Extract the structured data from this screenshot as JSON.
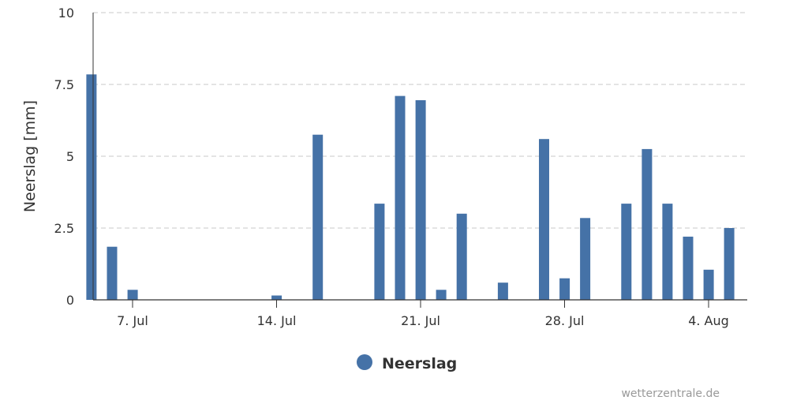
{
  "chart_data": {
    "type": "bar",
    "ylabel": "Neerslag [mm]",
    "ylim": [
      0,
      10
    ],
    "y_ticks": [
      "0",
      "2.5",
      "5",
      "7.5",
      "10"
    ],
    "y_tick_values": [
      0,
      2.5,
      5,
      7.5,
      10
    ],
    "x_ticks": [
      "7. Jul",
      "14. Jul",
      "21. Jul",
      "28. Jul",
      "4. Aug"
    ],
    "x_tick_dates": [
      "2024-07-07",
      "2024-07-14",
      "2024-07-21",
      "2024-07-28",
      "2024-08-04"
    ],
    "x_range": [
      "2024-07-05",
      "2024-08-06"
    ],
    "grid": true,
    "legend_position": "bottom-center",
    "series": [
      {
        "name": "Neerslag",
        "color": "#4572a7",
        "points": [
          {
            "date": "2024-07-06",
            "value": 7.85
          },
          {
            "date": "2024-07-07",
            "value": 1.85
          },
          {
            "date": "2024-07-08",
            "value": 0.35
          },
          {
            "date": "2024-07-15",
            "value": 0.15
          },
          {
            "date": "2024-07-17",
            "value": 5.75
          },
          {
            "date": "2024-07-20",
            "value": 3.35
          },
          {
            "date": "2024-07-21",
            "value": 7.1
          },
          {
            "date": "2024-07-22",
            "value": 6.95
          },
          {
            "date": "2024-07-23",
            "value": 0.35
          },
          {
            "date": "2024-07-24",
            "value": 3.0
          },
          {
            "date": "2024-07-26",
            "value": 0.6
          },
          {
            "date": "2024-07-28",
            "value": 5.6
          },
          {
            "date": "2024-07-29",
            "value": 0.75
          },
          {
            "date": "2024-07-30",
            "value": 2.85
          },
          {
            "date": "2024-08-01",
            "value": 3.35
          },
          {
            "date": "2024-08-02",
            "value": 5.25
          },
          {
            "date": "2024-08-03",
            "value": 3.35
          },
          {
            "date": "2024-08-04",
            "value": 2.2
          },
          {
            "date": "2024-08-05",
            "value": 1.05
          },
          {
            "date": "2024-08-06",
            "value": 2.5
          }
        ]
      }
    ]
  },
  "legend": {
    "label": "Neerslag"
  },
  "credit": "wetterzentrale.de"
}
